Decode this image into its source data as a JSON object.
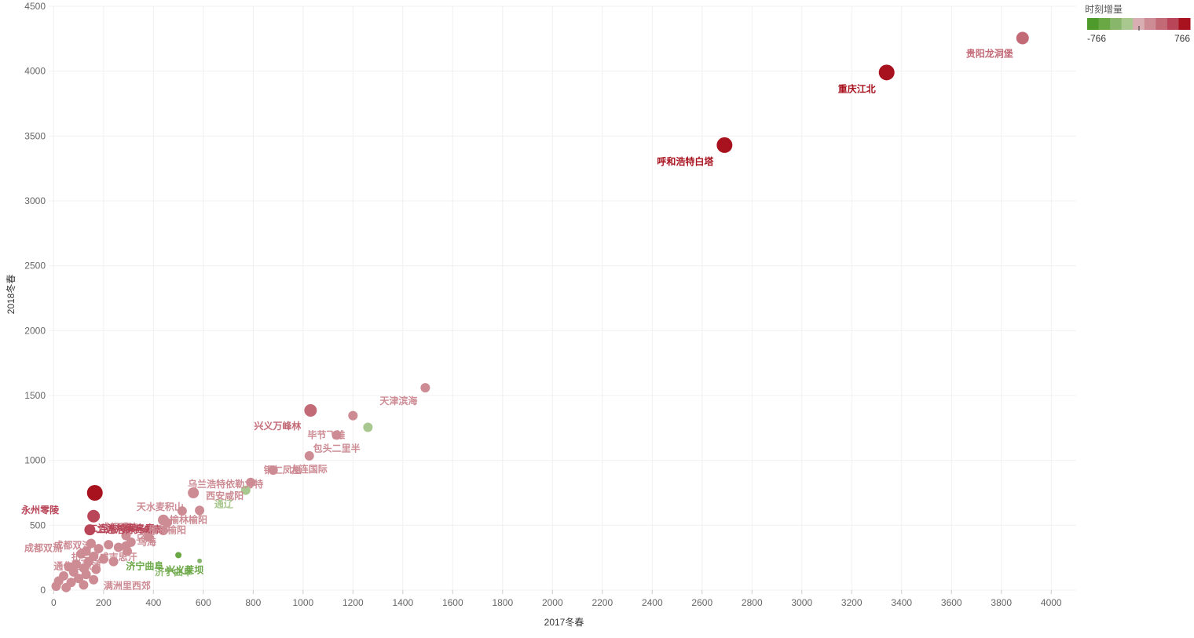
{
  "chart_data": {
    "type": "scatter",
    "xlabel": "2017冬春",
    "ylabel": "2018冬春",
    "xlim": [
      -20,
      4100
    ],
    "ylim": [
      0,
      4500
    ],
    "x_ticks": [
      0,
      200,
      400,
      600,
      800,
      1000,
      1200,
      1400,
      1600,
      1800,
      2000,
      2200,
      2400,
      2600,
      2800,
      3000,
      3200,
      3400,
      3600,
      3800,
      4000
    ],
    "y_ticks": [
      0,
      500,
      1000,
      1500,
      2000,
      2500,
      3000,
      3500,
      4000,
      4500
    ],
    "grid": true,
    "legend": {
      "title": "时刻增量",
      "position": "top-right",
      "min_label": "-766",
      "max_label": "766",
      "min": -766,
      "max": 766,
      "colors": [
        "#4e9a2a",
        "#6aa745",
        "#88b66a",
        "#a9c88f",
        "#d9aeb3",
        "#cd8b94",
        "#c36a77",
        "#b84558",
        "#a8121e"
      ]
    },
    "points": [
      {
        "x": 3885,
        "y": 4255,
        "delta": 300,
        "size": 8,
        "label": "贵阳龙洞堡"
      },
      {
        "x": 3340,
        "y": 3990,
        "delta": 766,
        "size": 10,
        "label": "重庆江北"
      },
      {
        "x": 2690,
        "y": 3430,
        "delta": 766,
        "size": 10,
        "label": "呼和浩特白塔"
      },
      {
        "x": 1490,
        "y": 1560,
        "delta": 150,
        "size": 6,
        "label": "天津滨海"
      },
      {
        "x": 1030,
        "y": 1385,
        "delta": 350,
        "size": 8,
        "label": "兴义万峰林"
      },
      {
        "x": 1200,
        "y": 1345,
        "delta": 200,
        "size": 6,
        "label": "毕节飞雄"
      },
      {
        "x": 1260,
        "y": 1255,
        "delta": -150,
        "size": 6,
        "label": ""
      },
      {
        "x": 1135,
        "y": 1195,
        "delta": 150,
        "size": 6,
        "label": "包头二里半"
      },
      {
        "x": 1025,
        "y": 1035,
        "delta": 150,
        "size": 6,
        "label": "大连国际"
      },
      {
        "x": 880,
        "y": 925,
        "delta": 150,
        "size": 6,
        "label": "铜仁凤凰"
      },
      {
        "x": 790,
        "y": 830,
        "delta": 150,
        "size": 6,
        "label": "乌兰浩特依勒力特"
      },
      {
        "x": 770,
        "y": 770,
        "delta": -150,
        "size": 6,
        "label": "通辽"
      },
      {
        "x": 560,
        "y": 750,
        "delta": 200,
        "size": 7,
        "label": "西安咸阳"
      },
      {
        "x": 585,
        "y": 615,
        "delta": 150,
        "size": 6,
        "label": ""
      },
      {
        "x": 515,
        "y": 610,
        "delta": 150,
        "size": 6,
        "label": "天水麦积山"
      },
      {
        "x": 440,
        "y": 540,
        "delta": 200,
        "size": 7,
        "label": "榆林榆阳"
      },
      {
        "x": 455,
        "y": 520,
        "delta": 150,
        "size": 6,
        "label": "成都双流"
      },
      {
        "x": 440,
        "y": 460,
        "delta": 150,
        "size": 6,
        "label": ""
      },
      {
        "x": 165,
        "y": 750,
        "delta": 766,
        "size": 10,
        "label": ""
      },
      {
        "x": 160,
        "y": 570,
        "delta": 600,
        "size": 8,
        "label": "永州零陵"
      },
      {
        "x": 145,
        "y": 465,
        "delta": 500,
        "size": 7,
        "label": "二连浩特赛乌素"
      },
      {
        "x": 290,
        "y": 480,
        "delta": 150,
        "size": 7,
        "label": ""
      },
      {
        "x": 375,
        "y": 455,
        "delta": 150,
        "size": 6,
        "label": ""
      },
      {
        "x": 380,
        "y": 410,
        "delta": 150,
        "size": 6,
        "label": ""
      },
      {
        "x": 290,
        "y": 420,
        "delta": 150,
        "size": 6,
        "label": ""
      },
      {
        "x": 310,
        "y": 370,
        "delta": 150,
        "size": 6,
        "label": "乌海"
      },
      {
        "x": 290,
        "y": 340,
        "delta": 150,
        "size": 6,
        "label": ""
      },
      {
        "x": 295,
        "y": 300,
        "delta": 150,
        "size": 6,
        "label": ""
      },
      {
        "x": 260,
        "y": 330,
        "delta": 150,
        "size": 6,
        "label": ""
      },
      {
        "x": 220,
        "y": 350,
        "delta": 150,
        "size": 6,
        "label": ""
      },
      {
        "x": 180,
        "y": 320,
        "delta": 150,
        "size": 6,
        "label": ""
      },
      {
        "x": 150,
        "y": 360,
        "delta": 150,
        "size": 6,
        "label": "成都双流"
      },
      {
        "x": 130,
        "y": 300,
        "delta": 150,
        "size": 6,
        "label": ""
      },
      {
        "x": 110,
        "y": 280,
        "delta": 150,
        "size": 6,
        "label": ""
      },
      {
        "x": 160,
        "y": 260,
        "delta": 150,
        "size": 6,
        "label": ""
      },
      {
        "x": 200,
        "y": 240,
        "delta": 150,
        "size": 6,
        "label": ""
      },
      {
        "x": 240,
        "y": 220,
        "delta": 150,
        "size": 6,
        "label": ""
      },
      {
        "x": 140,
        "y": 220,
        "delta": 150,
        "size": 6,
        "label": ""
      },
      {
        "x": 90,
        "y": 200,
        "delta": 150,
        "size": 6,
        "label": ""
      },
      {
        "x": 60,
        "y": 180,
        "delta": 150,
        "size": 6,
        "label": ""
      },
      {
        "x": 120,
        "y": 170,
        "delta": 150,
        "size": 6,
        "label": ""
      },
      {
        "x": 170,
        "y": 160,
        "delta": 150,
        "size": 6,
        "label": ""
      },
      {
        "x": 80,
        "y": 140,
        "delta": 150,
        "size": 6,
        "label": ""
      },
      {
        "x": 130,
        "y": 120,
        "delta": 150,
        "size": 6,
        "label": ""
      },
      {
        "x": 40,
        "y": 110,
        "delta": 150,
        "size": 6,
        "label": ""
      },
      {
        "x": 100,
        "y": 90,
        "delta": 150,
        "size": 6,
        "label": ""
      },
      {
        "x": 160,
        "y": 80,
        "delta": 150,
        "size": 6,
        "label": ""
      },
      {
        "x": 20,
        "y": 70,
        "delta": 150,
        "size": 6,
        "label": ""
      },
      {
        "x": 70,
        "y": 60,
        "delta": 150,
        "size": 6,
        "label": ""
      },
      {
        "x": 120,
        "y": 40,
        "delta": 150,
        "size": 6,
        "label": ""
      },
      {
        "x": 10,
        "y": 30,
        "delta": 150,
        "size": 6,
        "label": ""
      },
      {
        "x": 50,
        "y": 20,
        "delta": 150,
        "size": 6,
        "label": ""
      },
      {
        "x": 500,
        "y": 270,
        "delta": -500,
        "size": 4,
        "label": ""
      },
      {
        "x": 585,
        "y": 225,
        "delta": -400,
        "size": 3,
        "label": "济宁曲阜"
      }
    ],
    "annotations": [
      {
        "x": 70,
        "y": 230,
        "text": "扎兰屯成吉思汗",
        "delta": 150
      },
      {
        "x": 0,
        "y": 160,
        "text": "通化三源浦",
        "delta": 150
      },
      {
        "x": 200,
        "y": 10,
        "text": "满洲里西郊",
        "delta": 150
      },
      {
        "x": 290,
        "y": 160,
        "text": "济宁曲阜",
        "delta": -500
      },
      {
        "x": 450,
        "y": 130,
        "text": "兴义莱坝",
        "delta": -500
      },
      {
        "x": 140,
        "y": 450,
        "text": "二连浩特赛乌素",
        "delta": 500
      },
      {
        "x": 0,
        "y": 320,
        "text": "成都双流",
        "delta": 150
      },
      {
        "x": 380,
        "y": 440,
        "text": "榆林榆阳",
        "delta": 150
      },
      {
        "x": 330,
        "y": 375,
        "text": "乌海",
        "delta": 150
      }
    ]
  }
}
